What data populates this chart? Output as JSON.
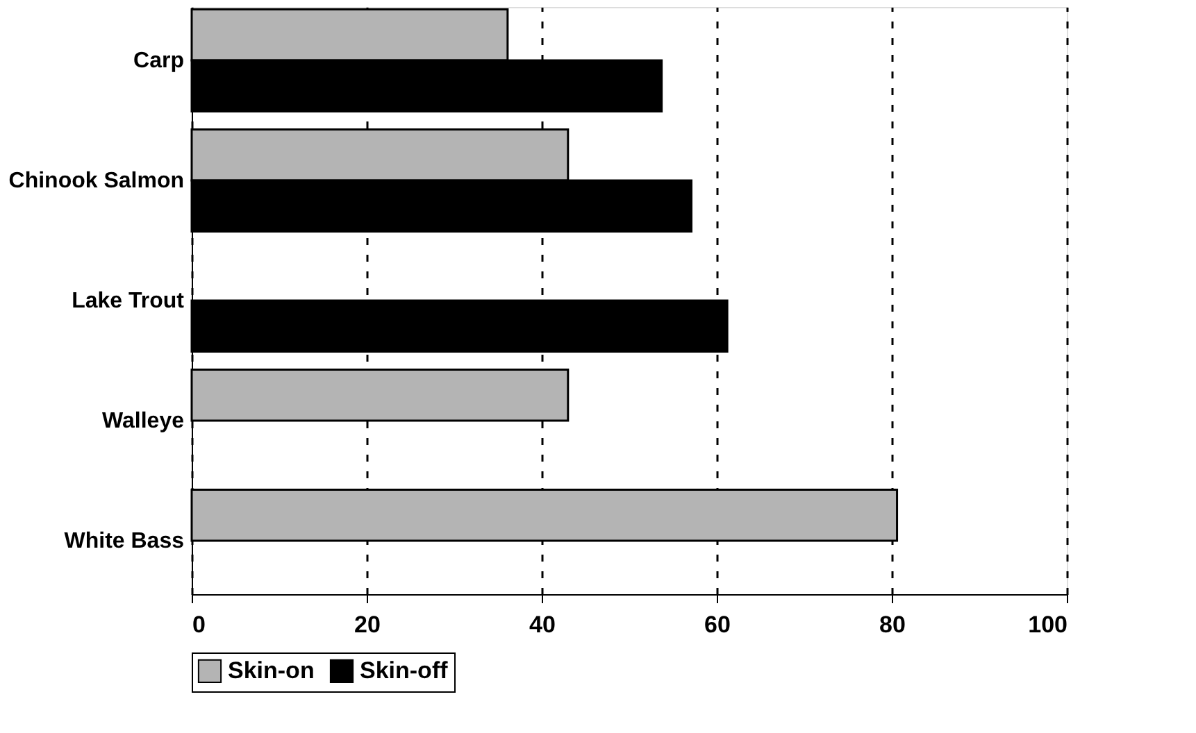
{
  "chart_data": {
    "type": "bar",
    "orientation": "horizontal",
    "categories": [
      "Carp",
      "Chinook Salmon",
      "Lake Trout",
      "Walleye",
      "White Bass"
    ],
    "series": [
      {
        "name": "Skin-on",
        "color": "#b4b4b4",
        "values": [
          36.1,
          43.0,
          null,
          43.0,
          80.6
        ]
      },
      {
        "name": "Skin-off",
        "color": "#000000",
        "values": [
          53.7,
          57.1,
          61.2,
          null,
          null
        ]
      }
    ],
    "xlim": [
      0,
      100
    ],
    "xticks": [
      0,
      20,
      40,
      60,
      80,
      100
    ],
    "grid": "x",
    "legend": "bottom"
  }
}
